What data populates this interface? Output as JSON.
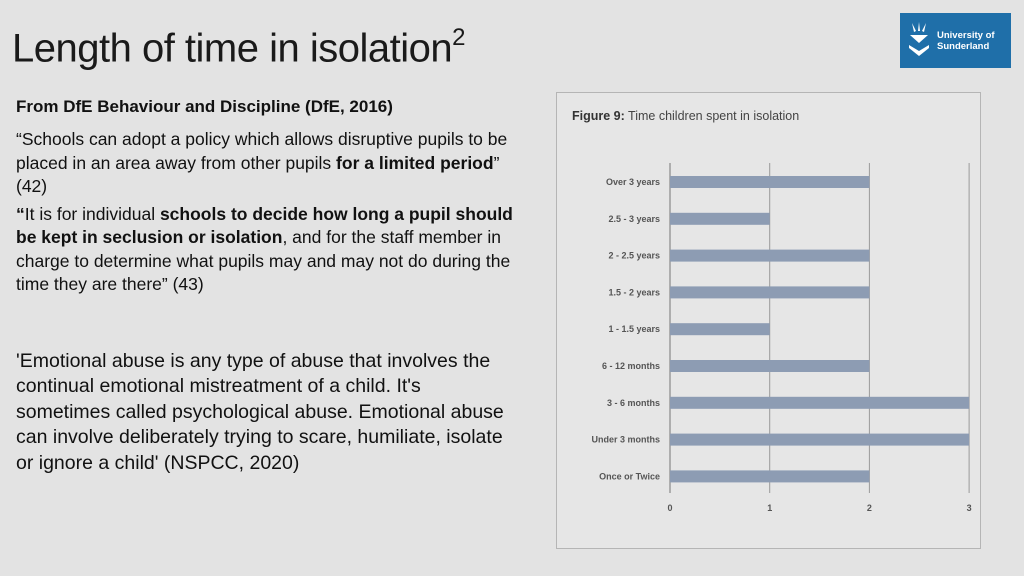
{
  "slide": {
    "title": "Length of time in isolation",
    "title_superscript": "2"
  },
  "logo": {
    "line1": "University of",
    "line2": "Sunderland",
    "icon": "university-crest-icon",
    "color": "#1f6fa9"
  },
  "text": {
    "subheading": "From DfE Behaviour and Discipline (DfE, 2016)",
    "para1_a": "“Schools can adopt a policy which allows disruptive pupils to be placed in an area away from other pupils ",
    "para1_bold": "for a limited period",
    "para1_c": "” (42)",
    "para2_quote": "“",
    "para2_a": "It is for individual ",
    "para2_bold": "schools to decide how long a pupil should be kept in seclusion or isolation",
    "para2_c": ", and for the staff member in charge to determine what pupils may and may not do during the time they are there” (43)",
    "para3": "'Emotional abuse is any type of abuse that involves the continual emotional mistreatment of a child. It's sometimes called psychological abuse. Emotional abuse can involve deliberately trying to scare, humiliate, isolate or ignore a child' (NSPCC, 2020)"
  },
  "figure": {
    "caption_label": "Figure 9:",
    "caption_text": "Time children spent in isolation"
  },
  "chart_data": {
    "type": "bar",
    "orientation": "horizontal",
    "categories": [
      "Over 3 years",
      "2.5 - 3 years",
      "2 - 2.5 years",
      "1.5 - 2 years",
      "1 - 1.5 years",
      "6 - 12 months",
      "3 - 6 months",
      "Under 3 months",
      "Once or Twice"
    ],
    "values": [
      2,
      1,
      2,
      2,
      1,
      2,
      3,
      3,
      2
    ],
    "xlim": [
      0,
      3
    ],
    "xticks": [
      "0",
      "1",
      "2",
      "3"
    ],
    "grid": "vertical",
    "bar_color": "#8d9cb3",
    "title": "",
    "xlabel": "",
    "ylabel": ""
  }
}
